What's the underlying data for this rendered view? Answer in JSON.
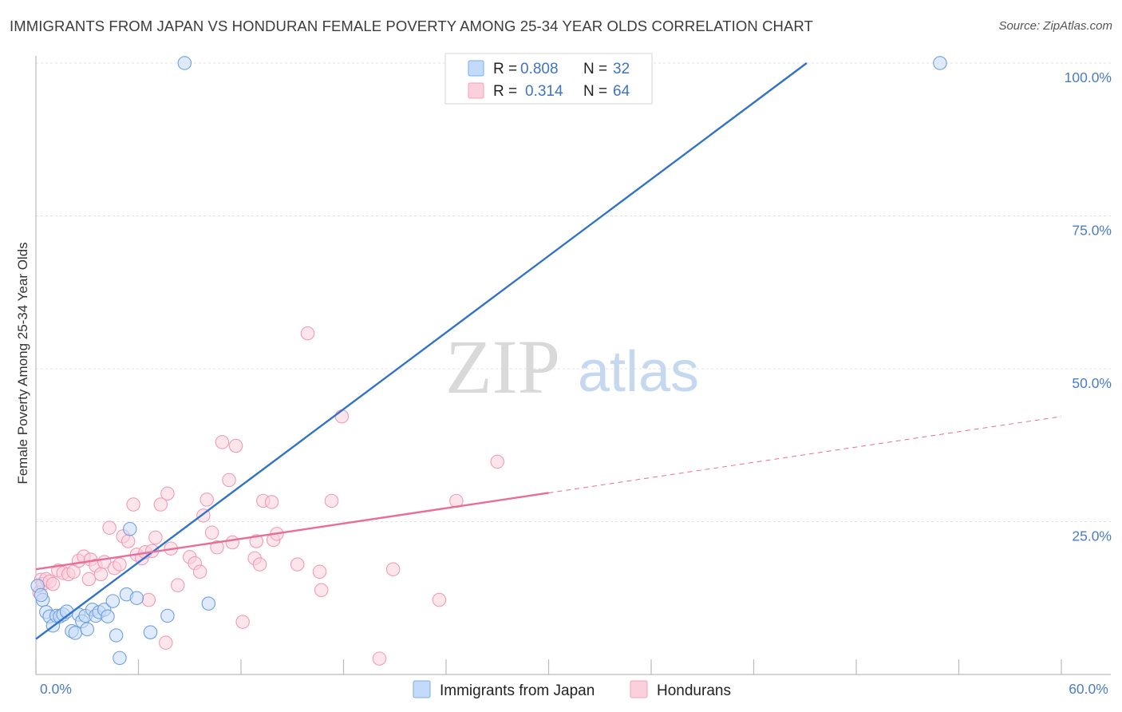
{
  "title": "IMMIGRANTS FROM JAPAN VS HONDURAN FEMALE POVERTY AMONG 25-34 YEAR OLDS CORRELATION CHART",
  "source": "Source: ZipAtlas.com",
  "watermark": {
    "zip": "ZIP",
    "atlas": "atlas"
  },
  "legend_top": [
    {
      "r_label": "R = ",
      "r_value": "0.808",
      "n_label": "N = ",
      "n_value": "32",
      "color": "#7aaee8"
    },
    {
      "r_label": "R = ",
      "r_value": "0.314",
      "n_label": "N = ",
      "n_value": "64",
      "color": "#f4a0b8"
    }
  ],
  "legend_bottom": [
    {
      "label": "Immigrants from Japan",
      "color": "#7aaee8"
    },
    {
      "label": "Hondurans",
      "color": "#f4a0b8"
    }
  ],
  "chart_data": {
    "type": "scatter",
    "title": "IMMIGRANTS FROM JAPAN VS HONDURAN FEMALE POVERTY AMONG 25-34 YEAR OLDS CORRELATION CHART",
    "xlabel": "",
    "ylabel": "Female Poverty Among 25-34 Year Olds",
    "xlim": [
      0,
      60
    ],
    "ylim": [
      0,
      100
    ],
    "x_tick_labels": [
      "0.0%",
      "60.0%"
    ],
    "y_tick_values": [
      25,
      50,
      75,
      100
    ],
    "y_tick_labels": [
      "25.0%",
      "50.0%",
      "75.0%",
      "100.0%"
    ],
    "grid": true,
    "legend": "top-center",
    "series": [
      {
        "name": "Immigrants from Japan",
        "color": "#7aaee8",
        "line_color": "#2f72cc",
        "R": 0.808,
        "N": 32,
        "trend": {
          "x0": 0,
          "y0": 5.8,
          "x1": 45.1,
          "y1": 100
        },
        "points": [
          [
            0.4,
            12.2
          ],
          [
            0.6,
            10.2
          ],
          [
            0.8,
            9.5
          ],
          [
            1.0,
            8.0
          ],
          [
            1.2,
            9.6
          ],
          [
            1.4,
            9.5
          ],
          [
            1.6,
            9.8
          ],
          [
            1.8,
            10.3
          ],
          [
            2.1,
            7.1
          ],
          [
            2.3,
            6.8
          ],
          [
            2.5,
            9.8
          ],
          [
            2.7,
            8.7
          ],
          [
            2.9,
            9.6
          ],
          [
            3.0,
            7.4
          ],
          [
            3.3,
            10.6
          ],
          [
            3.5,
            9.6
          ],
          [
            3.7,
            10.2
          ],
          [
            4.0,
            10.6
          ],
          [
            4.2,
            9.5
          ],
          [
            4.5,
            12.0
          ],
          [
            4.7,
            6.4
          ],
          [
            4.9,
            2.7
          ],
          [
            5.3,
            13.1
          ],
          [
            5.5,
            23.8
          ],
          [
            5.9,
            12.5
          ],
          [
            6.7,
            6.9
          ],
          [
            7.7,
            9.6
          ],
          [
            8.7,
            100.0
          ],
          [
            10.1,
            11.6
          ],
          [
            52.9,
            100.0
          ],
          [
            0.1,
            14.5
          ],
          [
            0.3,
            13.0
          ]
        ]
      },
      {
        "name": "Hondurans",
        "color": "#f4a0b8",
        "line_color": "#e86e98",
        "R": 0.314,
        "N": 64,
        "trend": {
          "x0": 0,
          "y0": 17.2,
          "x1": 30.0,
          "y1": 29.7
        },
        "trend_dashed": {
          "x0": 30.0,
          "y0": 29.7,
          "x1": 60.0,
          "y1": 42.2
        },
        "points": [
          [
            0.2,
            13.4
          ],
          [
            0.3,
            15.5
          ],
          [
            0.4,
            14.8
          ],
          [
            0.6,
            15.6
          ],
          [
            0.8,
            15.2
          ],
          [
            1.0,
            14.8
          ],
          [
            1.3,
            17.0
          ],
          [
            1.6,
            16.6
          ],
          [
            1.9,
            16.4
          ],
          [
            2.2,
            16.8
          ],
          [
            2.5,
            18.6
          ],
          [
            2.8,
            19.3
          ],
          [
            3.1,
            15.6
          ],
          [
            3.2,
            18.8
          ],
          [
            3.5,
            17.8
          ],
          [
            3.8,
            16.4
          ],
          [
            4.0,
            18.4
          ],
          [
            4.3,
            24.0
          ],
          [
            4.6,
            17.4
          ],
          [
            4.9,
            18.0
          ],
          [
            5.1,
            22.6
          ],
          [
            5.4,
            21.8
          ],
          [
            5.7,
            27.8
          ],
          [
            5.9,
            19.6
          ],
          [
            6.2,
            19.0
          ],
          [
            6.4,
            20.0
          ],
          [
            6.6,
            12.2
          ],
          [
            6.8,
            20.2
          ],
          [
            7.0,
            22.4
          ],
          [
            7.3,
            27.8
          ],
          [
            7.6,
            5.2
          ],
          [
            7.7,
            29.6
          ],
          [
            7.9,
            20.6
          ],
          [
            8.3,
            14.6
          ],
          [
            9.0,
            19.2
          ],
          [
            9.3,
            18.2
          ],
          [
            9.6,
            16.8
          ],
          [
            9.8,
            26.0
          ],
          [
            10.0,
            28.6
          ],
          [
            10.3,
            23.2
          ],
          [
            10.6,
            20.8
          ],
          [
            10.9,
            38.0
          ],
          [
            11.3,
            31.8
          ],
          [
            11.5,
            21.6
          ],
          [
            11.7,
            37.4
          ],
          [
            12.1,
            8.6
          ],
          [
            12.8,
            19.0
          ],
          [
            12.9,
            21.8
          ],
          [
            13.1,
            18.0
          ],
          [
            13.3,
            28.4
          ],
          [
            13.8,
            28.2
          ],
          [
            13.9,
            22.0
          ],
          [
            14.1,
            23.0
          ],
          [
            15.3,
            18.0
          ],
          [
            15.9,
            55.8
          ],
          [
            16.6,
            16.8
          ],
          [
            16.7,
            13.8
          ],
          [
            17.3,
            28.4
          ],
          [
            17.9,
            42.2
          ],
          [
            20.1,
            2.6
          ],
          [
            20.9,
            17.2
          ],
          [
            23.6,
            12.2
          ],
          [
            24.6,
            28.4
          ],
          [
            27.0,
            34.8
          ]
        ]
      }
    ]
  }
}
